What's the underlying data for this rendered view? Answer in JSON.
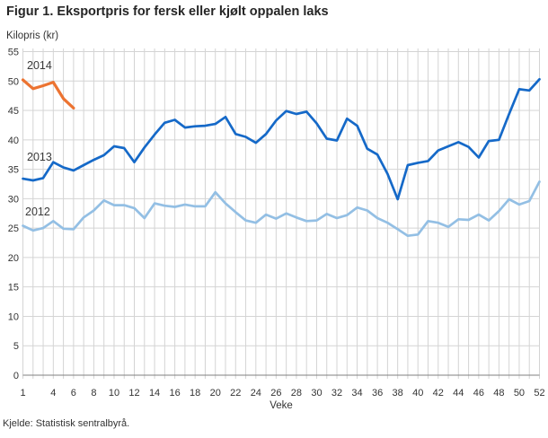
{
  "figure": {
    "title": "Figur 1. Eksportpris for fersk eller kjølt oppalen laks",
    "y_axis_unit_label": "Kilopris (kr)",
    "x_axis_title": "Veke",
    "source": "Kjelde: Statistisk sentralbyrå."
  },
  "chart_data": {
    "type": "line",
    "title": "Figur 1. Eksportpris for fersk eller kjølt oppalen laks",
    "xlabel": "Veke",
    "ylabel": "Kilopris (kr)",
    "ylim": [
      0,
      55
    ],
    "y_tick_step": 5,
    "y_tick_labels": [
      0,
      5,
      10,
      15,
      20,
      25,
      30,
      35,
      40,
      45,
      50,
      55
    ],
    "x_range_weeks": [
      1,
      52
    ],
    "x_tick_labels": [
      1,
      4,
      6,
      8,
      10,
      12,
      14,
      16,
      18,
      20,
      22,
      24,
      26,
      28,
      30,
      32,
      34,
      36,
      38,
      40,
      42,
      44,
      46,
      48,
      50,
      52
    ],
    "grid": "vertical line every week, horizontal line every 5 kr",
    "legend_position": "inline year labels at left side of lines",
    "axis_color": "#808080",
    "grid_color": "#d4d4d4",
    "series": [
      {
        "name": "2014",
        "color": "#EC7331",
        "start_week": 1,
        "values": [
          50.2,
          48.7,
          49.2,
          49.8,
          47.0,
          45.4
        ]
      },
      {
        "name": "2013",
        "color": "#1569C8",
        "start_week": 1,
        "values": [
          33.4,
          33.1,
          33.5,
          36.2,
          35.3,
          34.8,
          35.7,
          36.6,
          37.4,
          38.9,
          38.6,
          36.2,
          38.7,
          40.9,
          42.9,
          43.4,
          42.1,
          42.3,
          42.4,
          42.7,
          43.9,
          41.0,
          40.5,
          39.5,
          41.0,
          43.3,
          44.9,
          44.4,
          44.8,
          42.8,
          40.2,
          39.9,
          43.6,
          42.4,
          38.5,
          37.5,
          34.2,
          29.9,
          35.7,
          36.1,
          36.4,
          38.2,
          38.9,
          39.6,
          38.8,
          37.0,
          39.8,
          40.0,
          44.4,
          48.6,
          48.4,
          50.3
        ]
      },
      {
        "name": "2012",
        "color": "#93BFE4",
        "start_week": 1,
        "values": [
          25.4,
          24.6,
          25.0,
          26.2,
          24.9,
          24.8,
          26.8,
          28.0,
          29.7,
          28.9,
          28.9,
          28.4,
          26.7,
          29.2,
          28.8,
          28.6,
          29.0,
          28.7,
          28.7,
          31.1,
          29.2,
          27.7,
          26.3,
          25.9,
          27.3,
          26.6,
          27.5,
          26.8,
          26.2,
          26.3,
          27.4,
          26.7,
          27.2,
          28.5,
          28.0,
          26.7,
          25.9,
          24.8,
          23.7,
          23.9,
          26.2,
          25.9,
          25.2,
          26.5,
          26.4,
          27.3,
          26.3,
          27.9,
          29.9,
          29.0,
          29.6,
          32.9
        ]
      }
    ]
  }
}
